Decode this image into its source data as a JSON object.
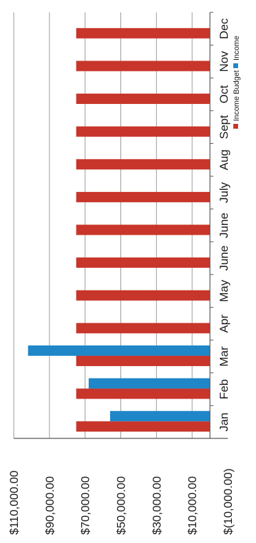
{
  "chart_data": {
    "type": "bar",
    "orientation": "rotated-90-ccw",
    "categories": [
      "Jan",
      "Feb",
      "Mar",
      "Apr",
      "May",
      "June",
      "June",
      "July",
      "Aug",
      "Sept",
      "Oct",
      "Nov",
      "Dec"
    ],
    "series": [
      {
        "name": "Income Budget",
        "color": "#c8352a",
        "values": [
          75000,
          75000,
          75000,
          75000,
          75000,
          75000,
          75000,
          75000,
          75000,
          75000,
          75000,
          75000,
          75000
        ]
      },
      {
        "name": "Income",
        "color": "#1f86c8",
        "values": [
          56000,
          68000,
          102000,
          null,
          null,
          null,
          null,
          null,
          null,
          null,
          null,
          null,
          null
        ]
      }
    ],
    "ylim": [
      -10000,
      110000
    ],
    "yticks": [
      {
        "value": 110000,
        "label": "$110,000.00"
      },
      {
        "value": 90000,
        "label": "$90,000.00"
      },
      {
        "value": 70000,
        "label": "$70,000.00"
      },
      {
        "value": 50000,
        "label": "$50,000.00"
      },
      {
        "value": 30000,
        "label": "$30,000.00"
      },
      {
        "value": 10000,
        "label": "$10,000.00"
      },
      {
        "value": -10000,
        "label": "$(10,000.00)"
      }
    ],
    "legend_position": "top-right",
    "grid": true
  }
}
